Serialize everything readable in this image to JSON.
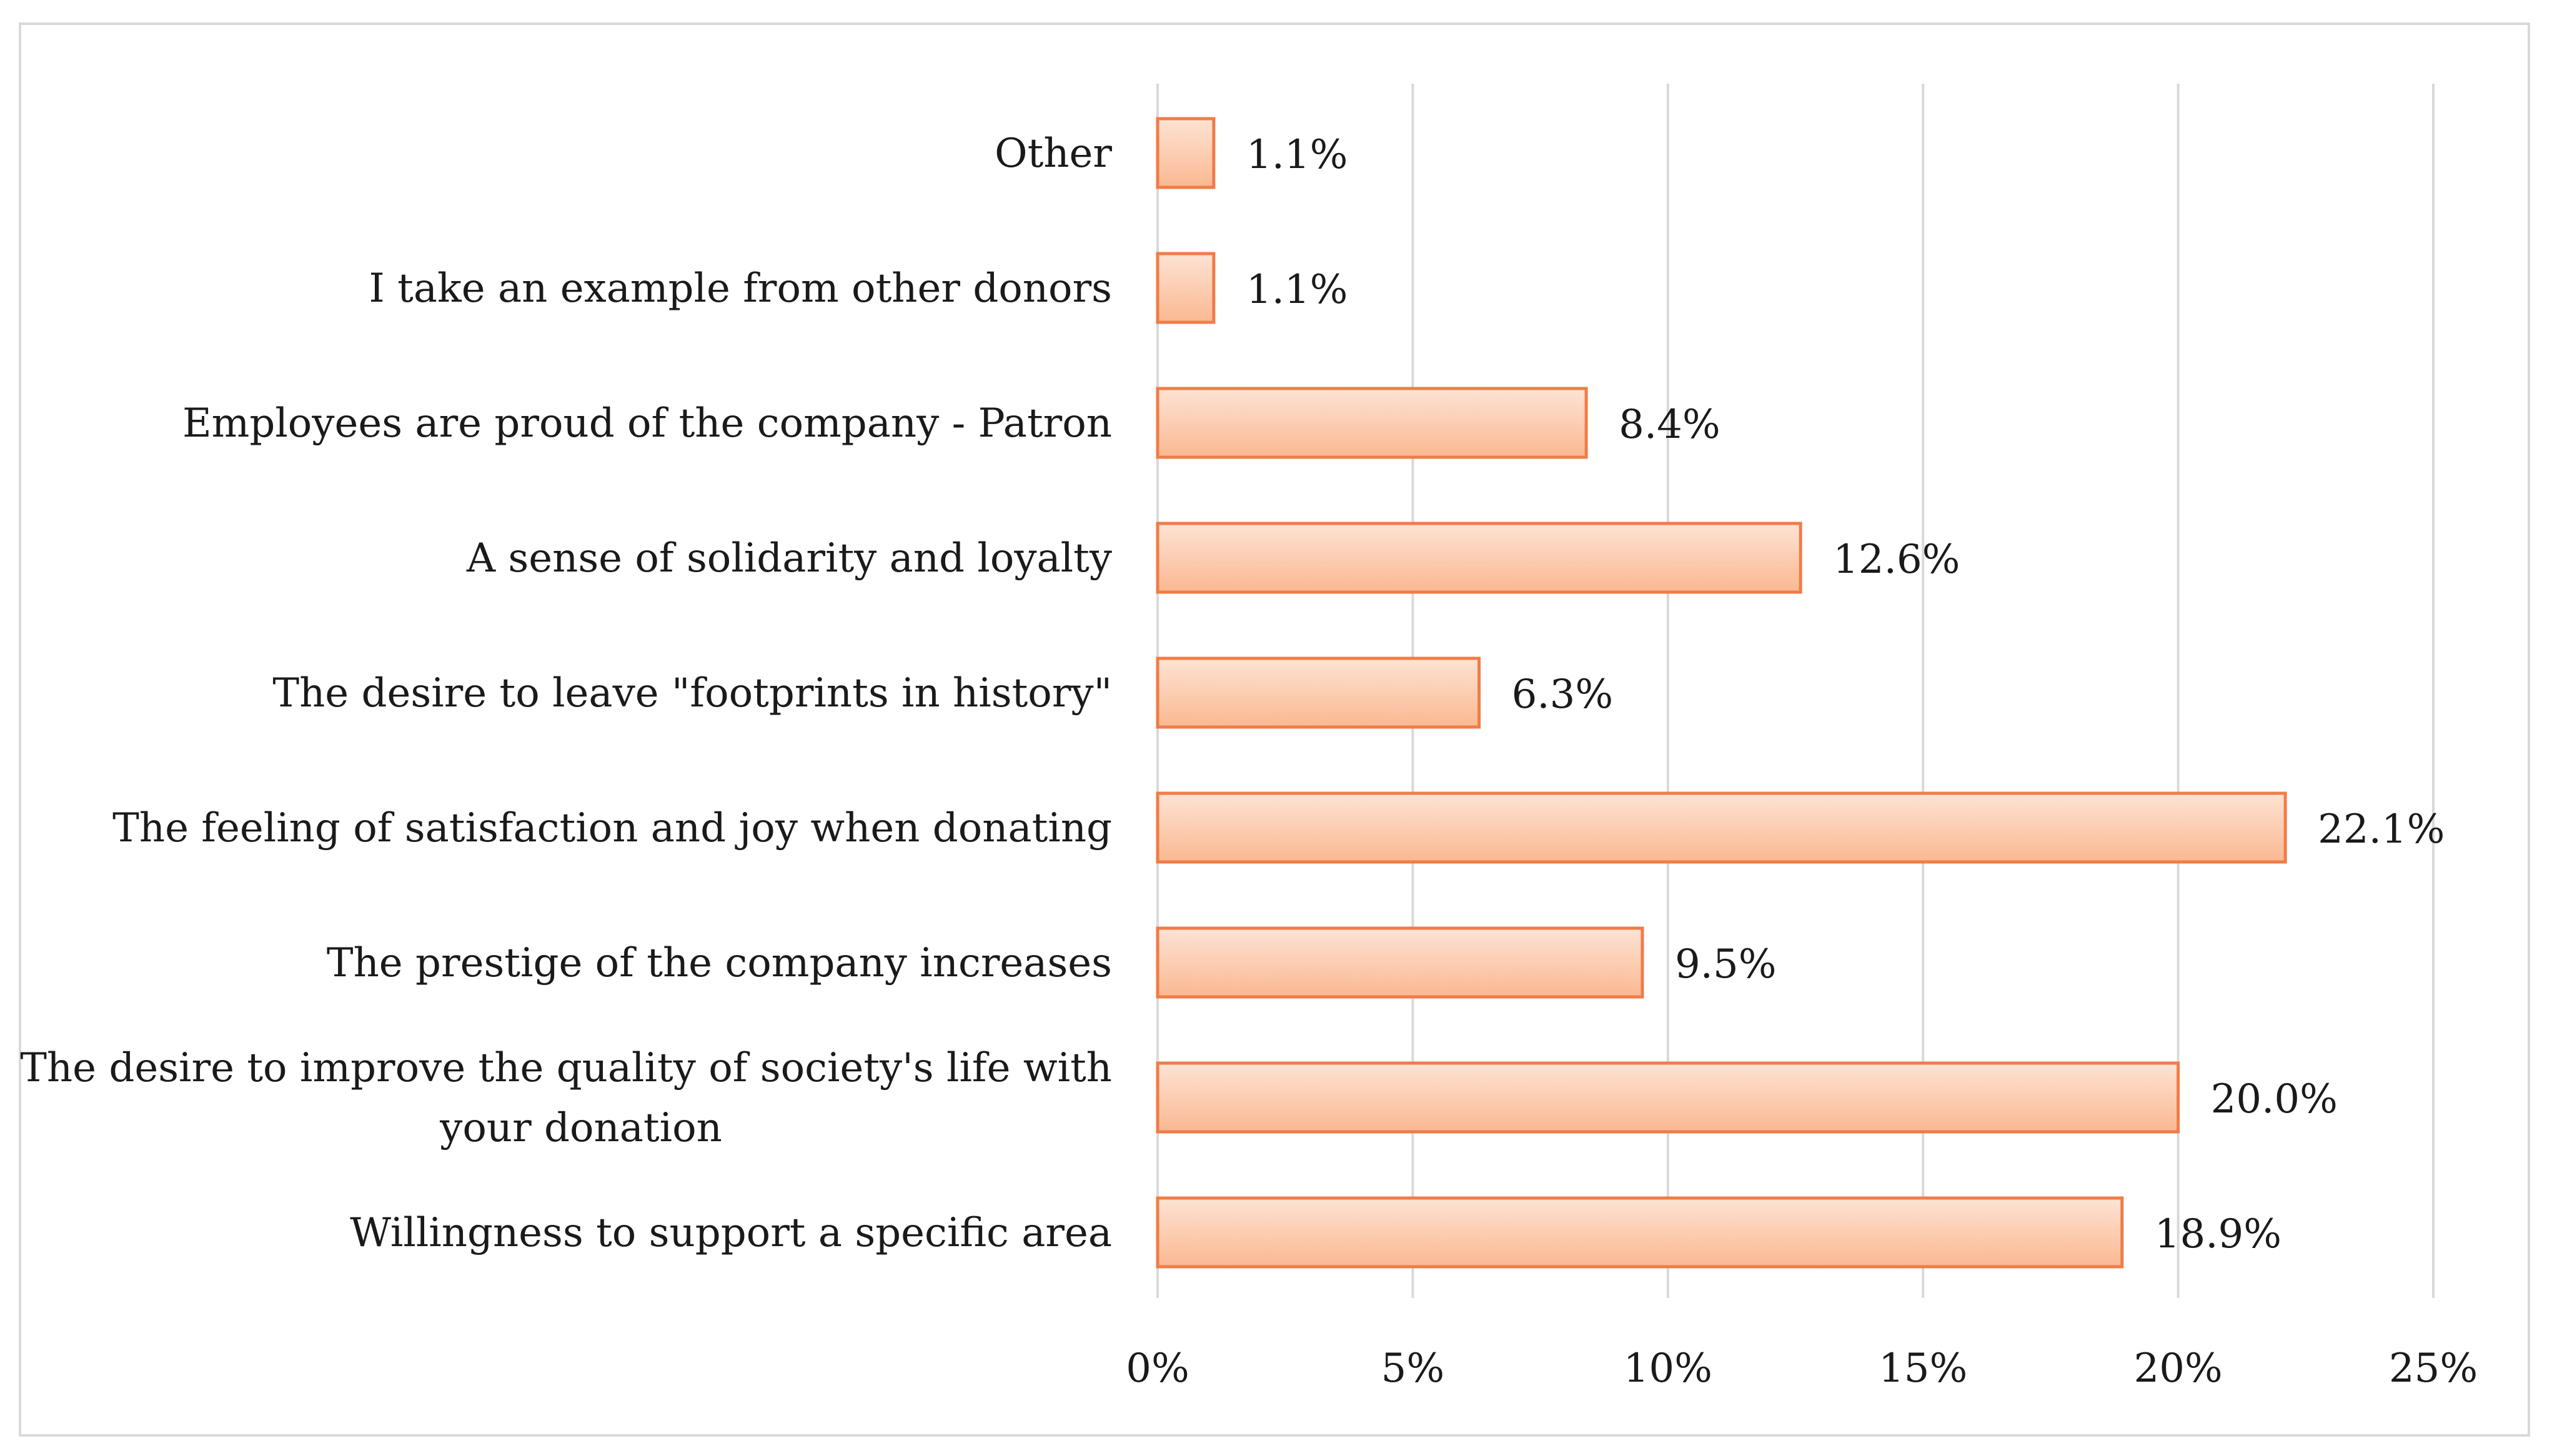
{
  "chart_data": {
    "type": "bar",
    "orientation": "horizontal",
    "title": "",
    "xlabel": "",
    "ylabel": "",
    "xlim": [
      0,
      25
    ],
    "x_ticks": [
      0,
      5,
      10,
      15,
      20,
      25
    ],
    "x_tick_labels": [
      "0%",
      "5%",
      "10%",
      "15%",
      "20%",
      "25%"
    ],
    "grid": true,
    "legend": "none",
    "categories": [
      [
        "Other"
      ],
      [
        "I take an example from other donors"
      ],
      [
        "Employees are proud of the company - Patron"
      ],
      [
        "A sense of solidarity and loyalty"
      ],
      [
        "The desire to leave \"footprints in history\""
      ],
      [
        "The feeling of satisfaction and joy when donating"
      ],
      [
        "The prestige of the company increases"
      ],
      [
        "The desire to improve the quality of society's life with",
        "your donation"
      ],
      [
        "Willingness to support a specific area"
      ]
    ],
    "values": [
      1.1,
      1.1,
      8.4,
      12.6,
      6.3,
      22.1,
      9.5,
      20.0,
      18.9
    ],
    "value_labels": [
      "1.1%",
      "1.1%",
      "8.4%",
      "12.6%",
      "6.3%",
      "22.1%",
      "9.5%",
      "20.0%",
      "18.9%"
    ],
    "colors": {
      "bar_fill_top": "#fde3d4",
      "bar_fill_bottom": "#fab891",
      "bar_stroke": "#f07c48",
      "grid": "#d9d9d9",
      "text": "#1a1a1a"
    }
  }
}
